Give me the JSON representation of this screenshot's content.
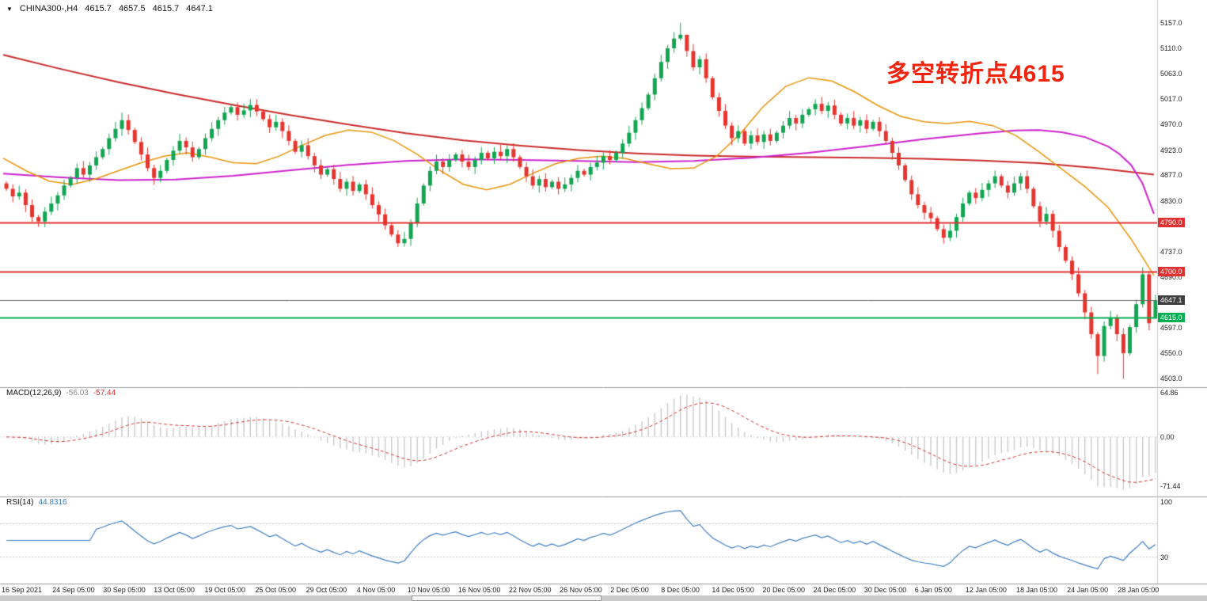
{
  "header": {
    "dropdown_icon": "▼",
    "symbol_period": "CHINA300-,H4",
    "open": "4615.7",
    "high": "4657.5",
    "low": "4615.7",
    "close": "4647.1"
  },
  "annotation": {
    "text": "多空转折点4615",
    "color": "#f1250f"
  },
  "indicators": {
    "macd": {
      "label": "MACD(12,26,9)",
      "value_main": "-56.03",
      "value_signal": "-57.44",
      "axis_ticks": [
        {
          "label": "64.86",
          "value": 64.86
        },
        {
          "label": "0.00",
          "value": 0
        },
        {
          "label": "-71.44",
          "value": -71.44
        }
      ]
    },
    "rsi": {
      "label": "RSI(14)",
      "value": "44.8316",
      "levels": [
        70,
        30
      ],
      "axis_ticks": [
        {
          "label": "100",
          "value": 100
        },
        {
          "label": "30",
          "value": 30
        }
      ]
    }
  },
  "price_axis": {
    "ticks": [
      {
        "label": "5157.0",
        "value": 5157
      },
      {
        "label": "5110.0",
        "value": 5110
      },
      {
        "label": "5063.0",
        "value": 5063
      },
      {
        "label": "5017.0",
        "value": 5017
      },
      {
        "label": "4970.0",
        "value": 4970
      },
      {
        "label": "4923.0",
        "value": 4923
      },
      {
        "label": "4877.0",
        "value": 4877
      },
      {
        "label": "4830.0",
        "value": 4830
      },
      {
        "label": "4737.0",
        "value": 4737
      },
      {
        "label": "4690.0",
        "value": 4690
      },
      {
        "label": "4597.0",
        "value": 4597
      },
      {
        "label": "4550.0",
        "value": 4550
      },
      {
        "label": "4503.0",
        "value": 4503
      }
    ],
    "badges": [
      {
        "label": "4790.0",
        "value": 4790,
        "color": "#e03030"
      },
      {
        "label": "4700.0",
        "value": 4700,
        "color": "#e03030"
      },
      {
        "label": "4647.1",
        "value": 4647.1,
        "color": "#3f3f3f"
      },
      {
        "label": "4615.0",
        "value": 4615,
        "color": "#00b050"
      }
    ]
  },
  "time_axis": {
    "labels": [
      "16 Sep 2021",
      "24 Sep 05:00",
      "30 Sep 05:00",
      "13 Oct 05:00",
      "19 Oct 05:00",
      "25 Oct 05:00",
      "29 Oct 05:00",
      "4 Nov 05:00",
      "10 Nov 05:00",
      "16 Nov 05:00",
      "22 Nov 05:00",
      "26 Nov 05:00",
      "2 Dec 05:00",
      "8 Dec 05:00",
      "14 Dec 05:00",
      "20 Dec 05:00",
      "24 Dec 05:00",
      "30 Dec 05:00",
      "6 Jan 05:00",
      "12 Jan 05:00",
      "18 Jan 05:00",
      "24 Jan 05:00",
      "28 Jan 05:00"
    ]
  },
  "chart_data": {
    "type": "candlestick",
    "symbol": "CHINA300",
    "timeframe": "H4",
    "title": "CHINA300-,H4",
    "ylim": [
      4492,
      5190
    ],
    "last_ohlc": {
      "open": 4615.7,
      "high": 4657.5,
      "low": 4615.7,
      "close": 4647.1
    },
    "first_open": 4862,
    "closes": [
      4852,
      4838,
      4845,
      4822,
      4800,
      4792,
      4810,
      4825,
      4840,
      4858,
      4872,
      4890,
      4878,
      4895,
      4910,
      4925,
      4945,
      4962,
      4978,
      4960,
      4938,
      4915,
      4890,
      4872,
      4885,
      4905,
      4922,
      4940,
      4928,
      4910,
      4925,
      4945,
      4962,
      4978,
      4992,
      5002,
      4988,
      4996,
      5006,
      4994,
      4980,
      4965,
      4975,
      4958,
      4940,
      4920,
      4932,
      4912,
      4895,
      4878,
      4888,
      4870,
      4852,
      4865,
      4848,
      4860,
      4842,
      4822,
      4805,
      4785,
      4768,
      4752,
      4760,
      4790,
      4825,
      4858,
      4885,
      4902,
      4892,
      4905,
      4915,
      4902,
      4892,
      4905,
      4918,
      4908,
      4920,
      4912,
      4925,
      4910,
      4892,
      4875,
      4858,
      4870,
      4855,
      4865,
      4852,
      4860,
      4872,
      4885,
      4878,
      4892,
      4900,
      4912,
      4905,
      4918,
      4935,
      4955,
      4978,
      5000,
      5025,
      5055,
      5085,
      5110,
      5128,
      5135,
      5105,
      5075,
      5090,
      5055,
      5020,
      4995,
      4968,
      4945,
      4958,
      4935,
      4950,
      4938,
      4952,
      4940,
      4955,
      4968,
      4982,
      4972,
      4988,
      4998,
      5008,
      4995,
      5005,
      4988,
      4972,
      4982,
      4968,
      4978,
      4962,
      4975,
      4958,
      4940,
      4918,
      4895,
      4868,
      4842,
      4822,
      4808,
      4798,
      4778,
      4762,
      4775,
      4800,
      4825,
      4845,
      4835,
      4850,
      4862,
      4875,
      4858,
      4845,
      4862,
      4875,
      4852,
      4820,
      4792,
      4806,
      4775,
      4745,
      4720,
      4695,
      4660,
      4625,
      4585,
      4545,
      4600,
      4615,
      4585,
      4550,
      4598,
      4640,
      4695,
      4605,
      4647.1
    ],
    "wick_overrides": {
      "5": {
        "low": 4782
      },
      "18": {
        "high": 4992
      },
      "38": {
        "high": 5017
      },
      "61": {
        "low": 4745
      },
      "104": {
        "high": 5140
      },
      "105": {
        "high": 5157
      },
      "106": {
        "high": 5120
      },
      "170": {
        "low": 4512
      },
      "174": {
        "low": 4503
      },
      "179": {
        "open": 4615.7,
        "high": 4657.5,
        "low": 4615.7
      }
    },
    "hlines": [
      {
        "name": "resistance-4790",
        "value": 4790,
        "color": "#e03030",
        "width": 2
      },
      {
        "name": "resistance-4700",
        "value": 4700,
        "color": "#e03030",
        "width": 2
      },
      {
        "name": "pivot-4615",
        "value": 4615,
        "color": "#00b050",
        "width": 2
      },
      {
        "name": "last-price-4647.1",
        "value": 4647.1,
        "color": "#6a6a6a",
        "width": 1
      }
    ],
    "ma_lines": [
      {
        "name": "ma-long-red",
        "color": "#c92a2a",
        "width": 2,
        "points": [
          [
            0,
            5098
          ],
          [
            0.05,
            5072
          ],
          [
            0.1,
            5048
          ],
          [
            0.15,
            5026
          ],
          [
            0.2,
            5006
          ],
          [
            0.25,
            4987
          ],
          [
            0.3,
            4970
          ],
          [
            0.35,
            4954
          ],
          [
            0.4,
            4941
          ],
          [
            0.45,
            4931
          ],
          [
            0.5,
            4923
          ],
          [
            0.55,
            4917
          ],
          [
            0.6,
            4913
          ],
          [
            0.65,
            4911
          ],
          [
            0.7,
            4910
          ],
          [
            0.75,
            4909
          ],
          [
            0.8,
            4907
          ],
          [
            0.85,
            4904
          ],
          [
            0.9,
            4899
          ],
          [
            0.95,
            4890
          ],
          [
            1,
            4878
          ]
        ]
      },
      {
        "name": "ma-mid-magenta",
        "color": "#cc22cc",
        "width": 2,
        "points": [
          [
            0,
            4880
          ],
          [
            0.05,
            4873
          ],
          [
            0.1,
            4868
          ],
          [
            0.15,
            4869
          ],
          [
            0.2,
            4876
          ],
          [
            0.25,
            4886
          ],
          [
            0.3,
            4896
          ],
          [
            0.35,
            4903
          ],
          [
            0.4,
            4906
          ],
          [
            0.45,
            4905
          ],
          [
            0.5,
            4903
          ],
          [
            0.55,
            4901
          ],
          [
            0.6,
            4903
          ],
          [
            0.65,
            4909
          ],
          [
            0.7,
            4918
          ],
          [
            0.75,
            4930
          ],
          [
            0.8,
            4943
          ],
          [
            0.85,
            4954
          ],
          [
            0.88,
            4959
          ],
          [
            0.9,
            4960
          ],
          [
            0.92,
            4956
          ],
          [
            0.94,
            4947
          ],
          [
            0.96,
            4930
          ],
          [
            0.97,
            4916
          ],
          [
            0.98,
            4896
          ],
          [
            0.99,
            4862
          ],
          [
            1,
            4806
          ]
        ]
      },
      {
        "name": "ma-short-orange",
        "color": "#e8940a",
        "width": 1.5,
        "points": [
          [
            0,
            4908
          ],
          [
            0.02,
            4885
          ],
          [
            0.04,
            4866
          ],
          [
            0.06,
            4860
          ],
          [
            0.08,
            4870
          ],
          [
            0.1,
            4885
          ],
          [
            0.12,
            4900
          ],
          [
            0.14,
            4912
          ],
          [
            0.16,
            4918
          ],
          [
            0.18,
            4910
          ],
          [
            0.2,
            4900
          ],
          [
            0.22,
            4898
          ],
          [
            0.24,
            4912
          ],
          [
            0.26,
            4932
          ],
          [
            0.28,
            4950
          ],
          [
            0.3,
            4960
          ],
          [
            0.32,
            4956
          ],
          [
            0.34,
            4940
          ],
          [
            0.36,
            4915
          ],
          [
            0.38,
            4885
          ],
          [
            0.4,
            4860
          ],
          [
            0.42,
            4850
          ],
          [
            0.44,
            4860
          ],
          [
            0.46,
            4880
          ],
          [
            0.48,
            4898
          ],
          [
            0.5,
            4908
          ],
          [
            0.52,
            4912
          ],
          [
            0.54,
            4908
          ],
          [
            0.56,
            4898
          ],
          [
            0.58,
            4889
          ],
          [
            0.6,
            4890
          ],
          [
            0.62,
            4912
          ],
          [
            0.64,
            4952
          ],
          [
            0.66,
            5002
          ],
          [
            0.68,
            5040
          ],
          [
            0.7,
            5056
          ],
          [
            0.72,
            5050
          ],
          [
            0.74,
            5030
          ],
          [
            0.76,
            5005
          ],
          [
            0.78,
            4985
          ],
          [
            0.8,
            4975
          ],
          [
            0.82,
            4972
          ],
          [
            0.84,
            4976
          ],
          [
            0.86,
            4968
          ],
          [
            0.88,
            4950
          ],
          [
            0.9,
            4920
          ],
          [
            0.92,
            4888
          ],
          [
            0.94,
            4856
          ],
          [
            0.96,
            4818
          ],
          [
            0.98,
            4760
          ],
          [
            1,
            4693
          ]
        ]
      }
    ],
    "colors": {
      "up": "#12a552",
      "down": "#e5352f",
      "macd_hist": "#c9c9c9",
      "macd_signal": "#d32f2f",
      "rsi_line": "#3f7cc0",
      "level_dashed": "#c4c4c4"
    }
  }
}
